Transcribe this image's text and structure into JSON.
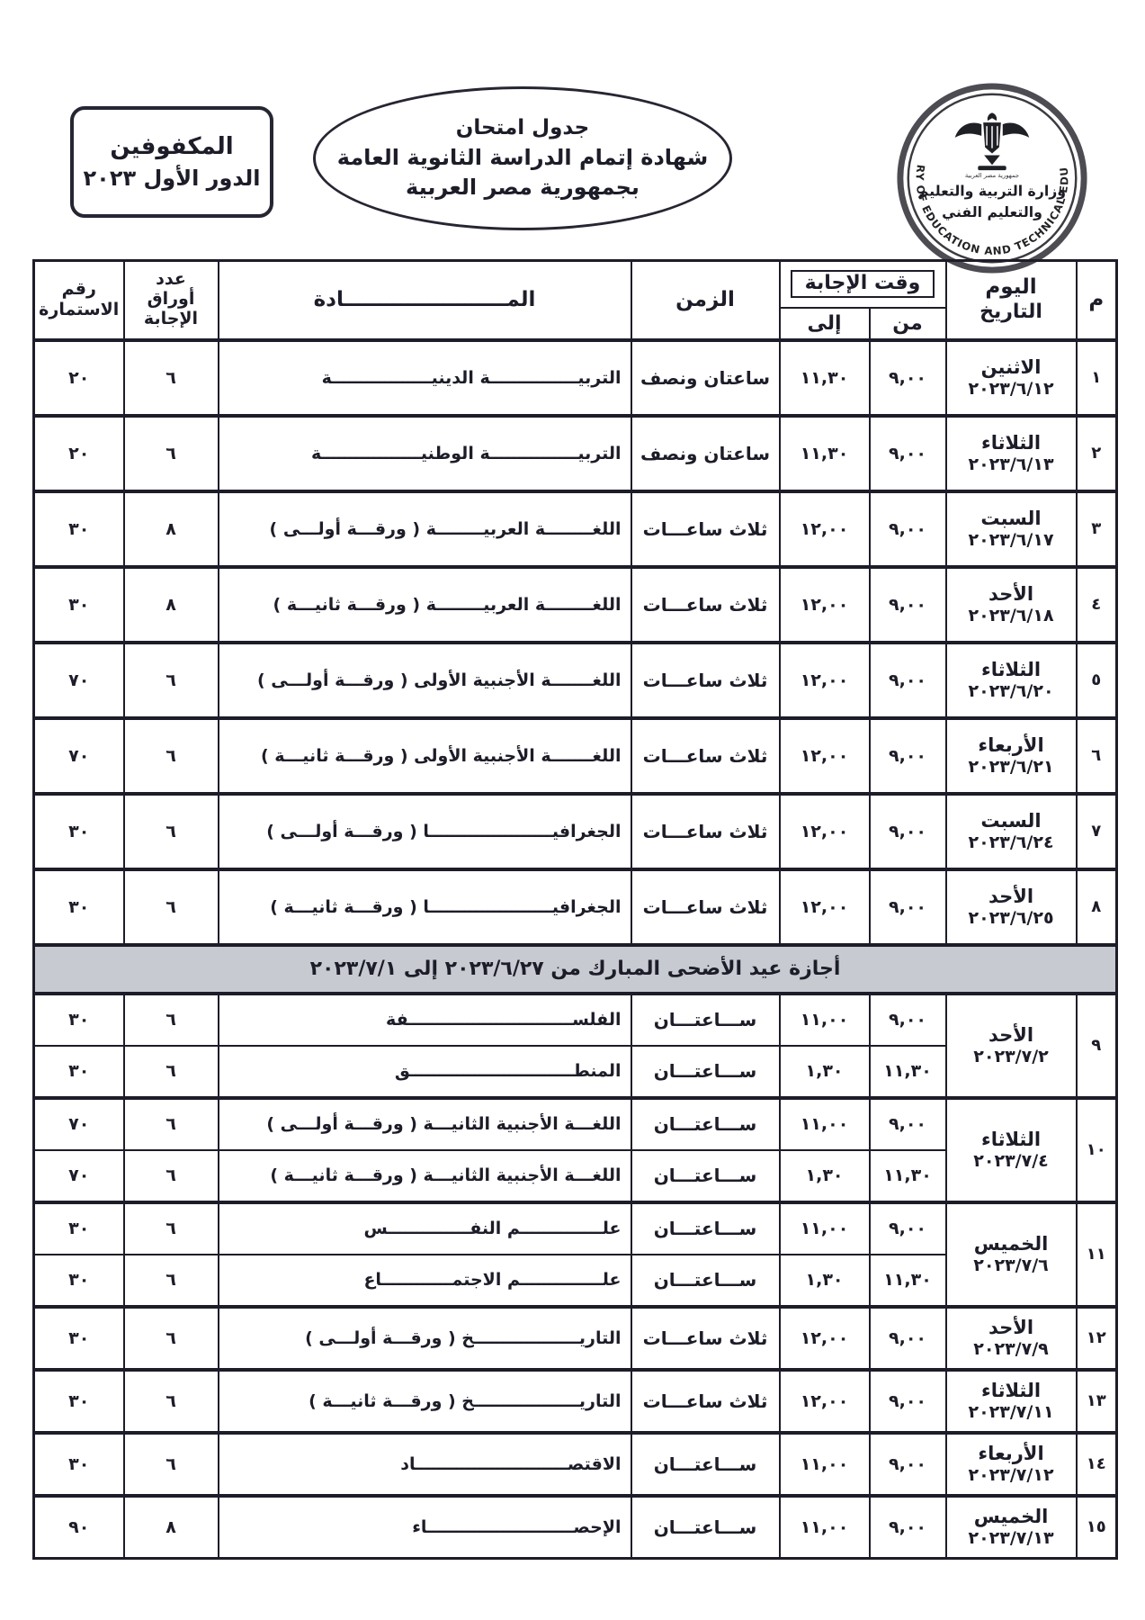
{
  "document": {
    "category_box": {
      "line1": "المكفوفين",
      "line2": "الدور الأول ٢٠٢٣"
    },
    "title_oval": {
      "line1": "جدول امتحان",
      "line2": "شهادة إتمام الدراسة الثانوية العامة",
      "line3": "بجمهورية مصر العربية"
    },
    "ministry_seal": {
      "arabic_line1": "وزارة التربية والتعليم",
      "arabic_line2": "والتعليم الفني",
      "ribbon": "جمهورية مصر العربية",
      "english_ring": "MINISTRY OF EDUCATION AND TECHNICAL EDUCATION"
    }
  },
  "colors": {
    "ink": "#1d1d29",
    "holiday_bg": "#c7cad1",
    "seal_gray": "#4c4c52"
  },
  "table": {
    "headers": {
      "serial": "م",
      "day": "اليوم",
      "date": "التاريخ",
      "answer_time": "وقت الإجابة",
      "from": "من",
      "to": "إلى",
      "duration": "الزمن",
      "subject": "المـــــــــــــــــــــــادة",
      "sheets_l1": "عدد",
      "sheets_l2": "أوراق",
      "sheets_l3": "الإجابة",
      "form_l1": "رقم",
      "form_l2": "الاستمارة"
    },
    "rows": [
      {
        "serial": "١",
        "day": "الاثنين",
        "date": "٢٠٢٣/٦/١٢",
        "exams": [
          {
            "subject": "التربيـــــــــــــــة الدينيـــــــــــــــــة",
            "duration": "ساعتان ونصف",
            "from": "٩,٠٠",
            "to": "١١,٣٠",
            "sheets": "٦",
            "form": "٢٠"
          }
        ]
      },
      {
        "serial": "٢",
        "day": "الثلاثاء",
        "date": "٢٠٢٣/٦/١٣",
        "exams": [
          {
            "subject": "التربيـــــــــــــــة الوطنيـــــــــــــــــة",
            "duration": "ساعتان ونصف",
            "from": "٩,٠٠",
            "to": "١١,٣٠",
            "sheets": "٦",
            "form": "٢٠"
          }
        ]
      },
      {
        "serial": "٣",
        "day": "السبت",
        "date": "٢٠٢٣/٦/١٧",
        "exams": [
          {
            "subject": "اللغــــــــة العربيــــــــة ( ورقـــة أولـــى )",
            "duration": "ثلاث ساعـــات",
            "from": "٩,٠٠",
            "to": "١٢,٠٠",
            "sheets": "٨",
            "form": "٣٠"
          }
        ]
      },
      {
        "serial": "٤",
        "day": "الأحد",
        "date": "٢٠٢٣/٦/١٨",
        "exams": [
          {
            "subject": "اللغــــــــة العربيــــــــة ( ورقـــة ثانيـــة )",
            "duration": "ثلاث ساعـــات",
            "from": "٩,٠٠",
            "to": "١٢,٠٠",
            "sheets": "٨",
            "form": "٣٠"
          }
        ]
      },
      {
        "serial": "٥",
        "day": "الثلاثاء",
        "date": "٢٠٢٣/٦/٢٠",
        "exams": [
          {
            "subject": "اللغـــــــة الأجنبية الأولى ( ورقـــة أولـــى )",
            "duration": "ثلاث ساعـــات",
            "from": "٩,٠٠",
            "to": "١٢,٠٠",
            "sheets": "٦",
            "form": "٧٠"
          }
        ]
      },
      {
        "serial": "٦",
        "day": "الأربعاء",
        "date": "٢٠٢٣/٦/٢١",
        "exams": [
          {
            "subject": "اللغـــــــة الأجنبية الأولى ( ورقـــة ثانيـــة )",
            "duration": "ثلاث ساعـــات",
            "from": "٩,٠٠",
            "to": "١٢,٠٠",
            "sheets": "٦",
            "form": "٧٠"
          }
        ]
      },
      {
        "serial": "٧",
        "day": "السبت",
        "date": "٢٠٢٣/٦/٢٤",
        "exams": [
          {
            "subject": "الجغرافيـــــــــــــــــــــا ( ورقـــة أولـــى )",
            "duration": "ثلاث ساعـــات",
            "from": "٩,٠٠",
            "to": "١٢,٠٠",
            "sheets": "٦",
            "form": "٣٠"
          }
        ]
      },
      {
        "serial": "٨",
        "day": "الأحد",
        "date": "٢٠٢٣/٦/٢٥",
        "exams": [
          {
            "subject": "الجغرافيـــــــــــــــــــــا ( ورقـــة ثانيـــة )",
            "duration": "ثلاث ساعـــات",
            "from": "٩,٠٠",
            "to": "١٢,٠٠",
            "sheets": "٦",
            "form": "٣٠"
          }
        ]
      },
      {
        "holiday": "أجازة عيد الأضحى المبارك من ٢٠٢٣/٦/٢٧ إلى ٢٠٢٣/٧/١"
      },
      {
        "serial": "٩",
        "day": "الأحد",
        "date": "٢٠٢٣/٧/٢",
        "exams": [
          {
            "subject": "الفلســــــــــــــــــــــــــــفة",
            "duration": "ســـاعتـــان",
            "from": "٩,٠٠",
            "to": "١١,٠٠",
            "sheets": "٦",
            "form": "٣٠"
          },
          {
            "subject": "المنطــــــــــــــــــــــــــــق",
            "duration": "ســـاعتـــان",
            "from": "١١,٣٠",
            "to": "١,٣٠",
            "sheets": "٦",
            "form": "٣٠"
          }
        ]
      },
      {
        "serial": "١٠",
        "day": "الثلاثاء",
        "date": "٢٠٢٣/٧/٤",
        "exams": [
          {
            "subject": "اللغـــة الأجنبية الثانيـــة ( ورقـــة أولـــى )",
            "duration": "ســـاعتـــان",
            "from": "٩,٠٠",
            "to": "١١,٠٠",
            "sheets": "٦",
            "form": "٧٠"
          },
          {
            "subject": "اللغـــة الأجنبية الثانيـــة ( ورقـــة ثانيـــة )",
            "duration": "ســـاعتـــان",
            "from": "١١,٣٠",
            "to": "١,٣٠",
            "sheets": "٦",
            "form": "٧٠"
          }
        ]
      },
      {
        "serial": "١١",
        "day": "الخميس",
        "date": "٢٠٢٣/٧/٦",
        "exams": [
          {
            "subject": "علــــــــــــــم النفــــــــــــــس",
            "duration": "ســـاعتـــان",
            "from": "٩,٠٠",
            "to": "١١,٠٠",
            "sheets": "٦",
            "form": "٣٠"
          },
          {
            "subject": "علــــــــــــــم الاجتمــــــــــــاع",
            "duration": "ســـاعتـــان",
            "from": "١١,٣٠",
            "to": "١,٣٠",
            "sheets": "٦",
            "form": "٣٠"
          }
        ]
      },
      {
        "serial": "١٢",
        "day": "الأحد",
        "date": "٢٠٢٣/٧/٩",
        "exams": [
          {
            "subject": "التاريــــــــــــــــــخ ( ورقـــة أولـــى )",
            "duration": "ثلاث ساعـــات",
            "from": "٩,٠٠",
            "to": "١٢,٠٠",
            "sheets": "٦",
            "form": "٣٠"
          }
        ]
      },
      {
        "serial": "١٣",
        "day": "الثلاثاء",
        "date": "٢٠٢٣/٧/١١",
        "exams": [
          {
            "subject": "التاريــــــــــــــــــخ ( ورقـــة ثانيـــة )",
            "duration": "ثلاث ساعـــات",
            "from": "٩,٠٠",
            "to": "١٢,٠٠",
            "sheets": "٦",
            "form": "٣٠"
          }
        ]
      },
      {
        "serial": "١٤",
        "day": "الأربعاء",
        "date": "٢٠٢٣/٧/١٢",
        "exams": [
          {
            "subject": "الاقتصــــــــــــــــــــــــــاد",
            "duration": "ســـاعتـــان",
            "from": "٩,٠٠",
            "to": "١١,٠٠",
            "sheets": "٦",
            "form": "٣٠"
          }
        ]
      },
      {
        "serial": "١٥",
        "day": "الخميس",
        "date": "٢٠٢٣/٧/١٣",
        "exams": [
          {
            "subject": "الإحصـــــــــــــــــــــــــاء",
            "duration": "ســـاعتـــان",
            "from": "٩,٠٠",
            "to": "١١,٠٠",
            "sheets": "٨",
            "form": "٩٠"
          }
        ]
      }
    ]
  }
}
